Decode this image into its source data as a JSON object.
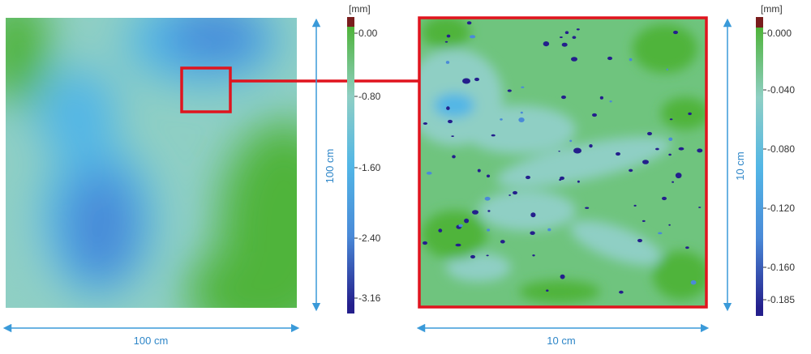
{
  "left_panel": {
    "width_label": "100 cm",
    "height_label": "100 cm",
    "colorbar": {
      "unit": "[mm]",
      "ticks": [
        "0.00",
        "-0.80",
        "-1.60",
        "-2.40",
        "-3.16"
      ]
    }
  },
  "right_panel": {
    "width_label": "10 cm",
    "height_label": "10 cm",
    "colorbar": {
      "unit": "[mm]",
      "ticks": [
        "0.000",
        "-0.040",
        "-0.080",
        "-0.120",
        "-0.160",
        "-0.185"
      ]
    }
  },
  "colors": {
    "zoom_frame": "#e0141e",
    "dimension_arrow": "#3a9ad9",
    "label_text": "#2e86c8",
    "green": "#4fb43a",
    "teal": "#8fcfc4",
    "light_blue": "#52b6e6",
    "mid_blue": "#4a8ad8",
    "dark_blue": "#241f8c",
    "top_marker": "#7a1d1d"
  },
  "colormap_stops": [
    "#7a1d1d",
    "#4fb43a",
    "#8fcfc4",
    "#52b6e6",
    "#4a8ad8",
    "#241f8c"
  ]
}
